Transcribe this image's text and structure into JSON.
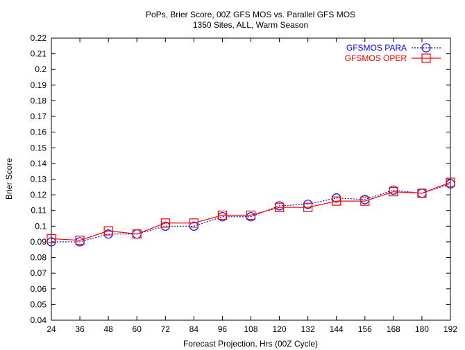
{
  "chart_data": {
    "type": "line",
    "title": "PoPs, Brier Score, 00Z GFS MOS vs. Parallel GFS MOS",
    "subtitle": "1350 Sites, ALL, Warm Season",
    "xlabel": "Forecast Projection, Hrs (00Z Cycle)",
    "ylabel": "Brier Score",
    "x": [
      24,
      36,
      48,
      60,
      72,
      84,
      96,
      108,
      120,
      132,
      144,
      156,
      168,
      180,
      192
    ],
    "x_tick_labels": [
      "24",
      "36",
      "48",
      "60",
      "72",
      "84",
      "96",
      "108",
      "120",
      "132",
      "144",
      "156",
      "168",
      "180",
      "192"
    ],
    "xlim": [
      24,
      192
    ],
    "ylim": [
      0.04,
      0.22
    ],
    "y_tick_labels": [
      "0.04",
      "0.05",
      "0.06",
      "0.07",
      "0.08",
      "0.09",
      "0.1",
      "0.11",
      "0.12",
      "0.13",
      "0.14",
      "0.15",
      "0.16",
      "0.17",
      "0.18",
      "0.19",
      "0.2",
      "0.21",
      "0.22"
    ],
    "grid": false,
    "legend_position": "top-right",
    "series": [
      {
        "name": "GFSMOS PARA",
        "color": "#0000ff",
        "line_style": "dotted",
        "marker": "circle",
        "values": [
          0.09,
          0.09,
          0.095,
          0.095,
          0.1,
          0.1,
          0.106,
          0.106,
          0.113,
          0.114,
          0.118,
          0.117,
          0.123,
          0.121,
          0.127
        ]
      },
      {
        "name": "GFSMOS OPER",
        "color": "#ff0000",
        "line_style": "solid",
        "marker": "square",
        "values": [
          0.092,
          0.091,
          0.097,
          0.095,
          0.102,
          0.102,
          0.107,
          0.107,
          0.112,
          0.112,
          0.116,
          0.116,
          0.122,
          0.121,
          0.128
        ]
      }
    ]
  }
}
